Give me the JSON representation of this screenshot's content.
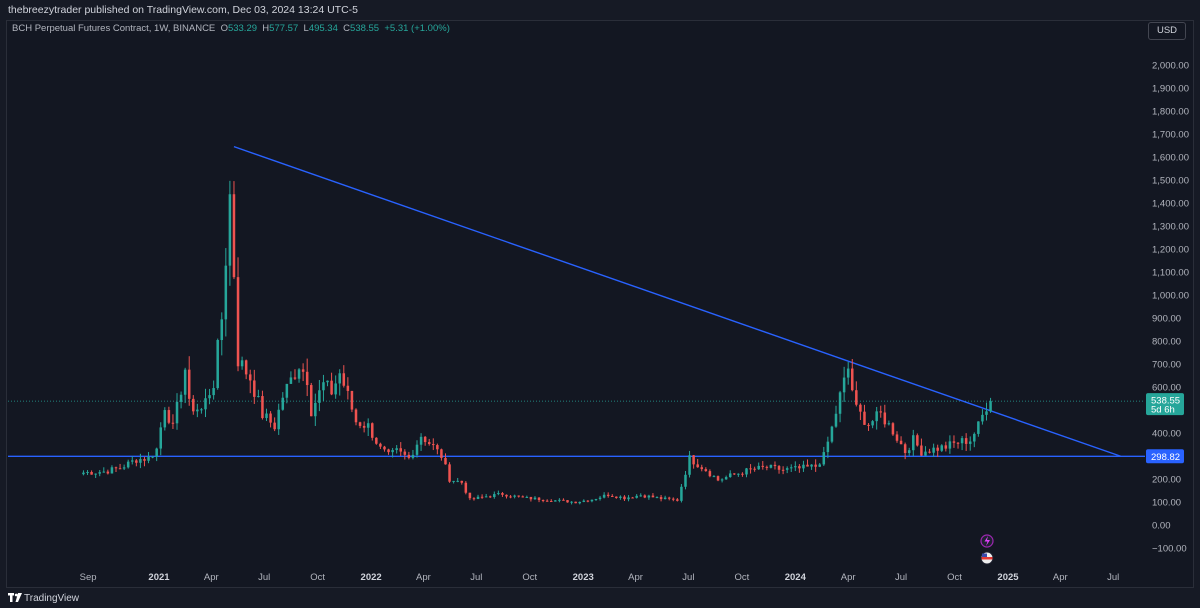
{
  "publisher": "thebreezytrader published on TradingView.com, Dec 03, 2024 13:24 UTC-5",
  "legend": {
    "symbol": "BCH Perpetual Futures Contract, 1W, BINANCE",
    "open_key": "O",
    "open": "533.29",
    "high_key": "H",
    "high": "577.57",
    "low_key": "L",
    "low": "495.34",
    "close_key": "C",
    "close": "538.55",
    "change": "+5.31 (+1.00%)"
  },
  "currency": "USD",
  "footer_brand": "TradingView",
  "colors": {
    "up": "#26a69a",
    "down": "#ef5350",
    "trendline": "#2962ff",
    "background": "#131722",
    "accent_label_blue": "#2962ff"
  },
  "icons": [
    "lightning-icon",
    "us-flag-icon",
    "tradingview-logo-icon"
  ],
  "chart_data": {
    "type": "candlestick",
    "symbol": "BCH Perpetual Futures Contract",
    "timeframe": "1W",
    "exchange": "BINANCE",
    "y_axis": {
      "unit": "USD",
      "ylim": [
        -140,
        2180
      ],
      "ticks": [
        -100,
        0,
        100,
        200,
        300,
        400,
        500,
        600,
        700,
        800,
        900,
        1000,
        1100,
        1200,
        1300,
        1400,
        1500,
        1600,
        1700,
        1800,
        1900,
        2000
      ],
      "tick_labels": [
        "−100.00",
        "0.00",
        "100.00",
        "200.00",
        "300.00",
        "400.00",
        "500.00",
        "600.00",
        "700.00",
        "800.00",
        "900.00",
        "1,000.00",
        "1,100.00",
        "1,200.00",
        "1,300.00",
        "1,400.00",
        "1,500.00",
        "1,600.00",
        "1,700.00",
        "1,800.00",
        "1,900.00",
        "2,000.00"
      ]
    },
    "x_axis": {
      "ticks": [
        {
          "label": "Sep",
          "date": "2020-09-01",
          "bold": false
        },
        {
          "label": "2021",
          "date": "2021-01-01",
          "bold": true
        },
        {
          "label": "Apr",
          "date": "2021-04-01",
          "bold": false
        },
        {
          "label": "Jul",
          "date": "2021-07-01",
          "bold": false
        },
        {
          "label": "Oct",
          "date": "2021-10-01",
          "bold": false
        },
        {
          "label": "2022",
          "date": "2022-01-01",
          "bold": true
        },
        {
          "label": "Apr",
          "date": "2022-04-01",
          "bold": false
        },
        {
          "label": "Jul",
          "date": "2022-07-01",
          "bold": false
        },
        {
          "label": "Oct",
          "date": "2022-10-01",
          "bold": false
        },
        {
          "label": "2023",
          "date": "2023-01-01",
          "bold": true
        },
        {
          "label": "Apr",
          "date": "2023-04-01",
          "bold": false
        },
        {
          "label": "Jul",
          "date": "2023-07-01",
          "bold": false
        },
        {
          "label": "Oct",
          "date": "2023-10-01",
          "bold": false
        },
        {
          "label": "2024",
          "date": "2024-01-01",
          "bold": true
        },
        {
          "label": "Apr",
          "date": "2024-04-01",
          "bold": false
        },
        {
          "label": "Jul",
          "date": "2024-07-01",
          "bold": false
        },
        {
          "label": "Oct",
          "date": "2024-10-01",
          "bold": false
        },
        {
          "label": "2025",
          "date": "2025-01-01",
          "bold": true
        },
        {
          "label": "Apr",
          "date": "2025-04-01",
          "bold": false
        },
        {
          "label": "Jul",
          "date": "2025-07-01",
          "bold": false
        }
      ],
      "xlim": [
        "2020-06-20",
        "2025-08-31"
      ]
    },
    "anchors": [
      [
        "2020-08-24",
        228
      ],
      [
        "2020-09-28",
        232
      ],
      [
        "2020-10-26",
        248
      ],
      [
        "2020-11-23",
        285
      ],
      [
        "2020-12-14",
        290
      ],
      [
        "2020-12-28",
        330
      ],
      [
        "2021-01-11",
        520
      ],
      [
        "2021-01-25",
        420
      ],
      [
        "2021-02-15",
        680
      ],
      [
        "2021-02-22",
        520
      ],
      [
        "2021-03-15",
        500
      ],
      [
        "2021-04-05",
        620
      ],
      [
        "2021-04-19",
        900
      ],
      [
        "2021-05-03",
        1430
      ],
      [
        "2021-05-10",
        1100
      ],
      [
        "2021-05-17",
        720
      ],
      [
        "2021-06-07",
        640
      ],
      [
        "2021-06-28",
        480
      ],
      [
        "2021-07-19",
        430
      ],
      [
        "2021-08-02",
        560
      ],
      [
        "2021-08-30",
        700
      ],
      [
        "2021-09-13",
        640
      ],
      [
        "2021-09-20",
        500
      ],
      [
        "2021-10-11",
        610
      ],
      [
        "2021-10-25",
        580
      ],
      [
        "2021-11-08",
        660
      ],
      [
        "2021-11-22",
        560
      ],
      [
        "2021-12-06",
        450
      ],
      [
        "2021-12-27",
        430
      ],
      [
        "2022-01-17",
        330
      ],
      [
        "2022-01-31",
        300
      ],
      [
        "2022-02-14",
        320
      ],
      [
        "2022-03-07",
        290
      ],
      [
        "2022-03-28",
        390
      ],
      [
        "2022-04-18",
        340
      ],
      [
        "2022-05-02",
        300
      ],
      [
        "2022-05-16",
        200
      ],
      [
        "2022-06-06",
        185
      ],
      [
        "2022-06-20",
        110
      ],
      [
        "2022-07-18",
        125
      ],
      [
        "2022-08-15",
        135
      ],
      [
        "2022-09-19",
        118
      ],
      [
        "2022-10-24",
        112
      ],
      [
        "2022-11-07",
        108
      ],
      [
        "2022-12-19",
        100
      ],
      [
        "2023-01-16",
        112
      ],
      [
        "2023-02-13",
        132
      ],
      [
        "2023-03-13",
        118
      ],
      [
        "2023-04-10",
        130
      ],
      [
        "2023-05-15",
        115
      ],
      [
        "2023-06-12",
        108
      ],
      [
        "2023-06-26",
        230
      ],
      [
        "2023-07-03",
        290
      ],
      [
        "2023-07-31",
        240
      ],
      [
        "2023-08-21",
        195
      ],
      [
        "2023-09-18",
        220
      ],
      [
        "2023-10-16",
        240
      ],
      [
        "2023-11-13",
        250
      ],
      [
        "2023-12-11",
        240
      ],
      [
        "2024-01-08",
        245
      ],
      [
        "2024-02-05",
        255
      ],
      [
        "2024-02-19",
        300
      ],
      [
        "2024-03-04",
        420
      ],
      [
        "2024-03-18",
        560
      ],
      [
        "2024-04-01",
        680
      ],
      [
        "2024-04-15",
        500
      ],
      [
        "2024-05-06",
        440
      ],
      [
        "2024-05-27",
        480
      ],
      [
        "2024-06-17",
        410
      ],
      [
        "2024-07-08",
        320
      ],
      [
        "2024-07-22",
        370
      ],
      [
        "2024-08-05",
        320
      ],
      [
        "2024-08-26",
        330
      ],
      [
        "2024-09-16",
        340
      ],
      [
        "2024-10-07",
        360
      ],
      [
        "2024-10-28",
        370
      ],
      [
        "2024-11-11",
        430
      ],
      [
        "2024-11-25",
        520
      ],
      [
        "2024-12-02",
        538.55
      ]
    ],
    "overlays": {
      "trendline": {
        "from": {
          "date": "2021-05-10",
          "price": 1645
        },
        "to": {
          "date": "2025-07-14",
          "price": 298.82
        },
        "color": "#2962ff"
      },
      "horizontal_line": {
        "price": 298.82,
        "label": "298.82",
        "color": "#2962ff"
      },
      "last_price": {
        "price": 538.55,
        "label": "538.55",
        "countdown": "5d 6h",
        "color": "#26a69a"
      }
    },
    "grid": false
  }
}
